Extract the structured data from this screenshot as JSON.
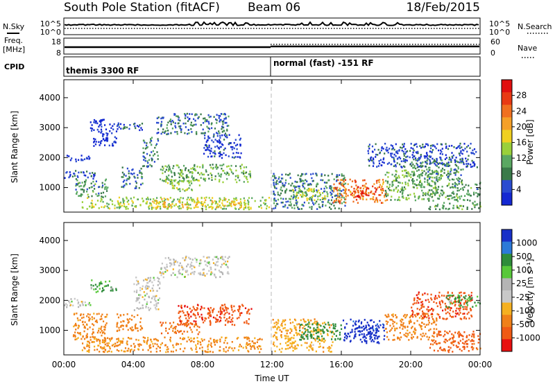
{
  "header": {
    "station": "South Pole Station (fitACF)",
    "beam": "Beam 06",
    "date": "18/Feb/2015"
  },
  "left_labels": {
    "nsky": "N.Sky",
    "freq": "Freq.",
    "freq_unit": "[MHz]",
    "cpid": "CPID"
  },
  "right_labels": {
    "nsearch": "N.Search",
    "nave": "Nave"
  },
  "noise_panel": {
    "left_ticks": [
      "10^5",
      "10^0"
    ],
    "right_ticks": [
      "10^5",
      "10^0"
    ]
  },
  "freq_panel": {
    "left_ticks": [
      "18",
      "8"
    ],
    "right_ticks": [
      "60",
      "0"
    ]
  },
  "cpid_panel": {
    "segments": [
      {
        "label": "themis 3300 RF"
      },
      {
        "label": "normal (fast) -151 RF"
      }
    ]
  },
  "colors": {
    "power": [
      "#1428d2",
      "#2a4bd0",
      "#3a7a4a",
      "#5aa862",
      "#9ad03a",
      "#f0d020",
      "#f5a028",
      "#f07020",
      "#e83a14",
      "#e01010"
    ],
    "velocity": [
      "#1830c8",
      "#2c7ad8",
      "#2e8c3a",
      "#58c83a",
      "#b4b4b4",
      "#c8c8c8",
      "#f5b020",
      "#f08018",
      "#f05a14",
      "#e81010"
    ]
  },
  "chart_data": [
    {
      "type": "heatmap",
      "name": "power",
      "ylabel": "Slant Range [km]",
      "ylim": [
        180,
        4600
      ],
      "yticks": [
        "1000",
        "2000",
        "3000",
        "4000"
      ],
      "xlim": [
        0,
        24
      ],
      "xticks": [
        "00:00",
        "04:00",
        "08:00",
        "12:00",
        "16:00",
        "20:00",
        "00:00"
      ],
      "colorbar": {
        "label": "Power [dB]",
        "ticks": [
          "4",
          "8",
          "12",
          "16",
          "20",
          "24",
          "28"
        ]
      },
      "regions": [
        {
          "t0": 0.0,
          "t1": 1.5,
          "r0": 1900,
          "r1": 2100,
          "v": 4
        },
        {
          "t0": 0.0,
          "t1": 1.8,
          "r0": 1300,
          "r1": 1600,
          "v": 6
        },
        {
          "t0": 0.6,
          "t1": 2.6,
          "r0": 700,
          "r1": 1300,
          "v": 10
        },
        {
          "t0": 1.5,
          "t1": 3.0,
          "r0": 2400,
          "r1": 3300,
          "v": 4
        },
        {
          "t0": 3.0,
          "t1": 4.5,
          "r0": 2900,
          "r1": 3200,
          "v": 6
        },
        {
          "t0": 3.3,
          "t1": 4.5,
          "r0": 1000,
          "r1": 1700,
          "v": 8
        },
        {
          "t0": 4.5,
          "t1": 5.4,
          "r0": 1700,
          "r1": 2700,
          "v": 9
        },
        {
          "t0": 5.3,
          "t1": 9.5,
          "r0": 2800,
          "r1": 3500,
          "v": 8
        },
        {
          "t0": 5.5,
          "t1": 10.8,
          "r0": 1200,
          "r1": 1800,
          "v": 12
        },
        {
          "t0": 5.8,
          "t1": 7.8,
          "r0": 900,
          "r1": 1300,
          "v": 15
        },
        {
          "t0": 8.0,
          "t1": 10.2,
          "r0": 2000,
          "r1": 2800,
          "v": 5
        },
        {
          "t0": 1.0,
          "t1": 11.8,
          "r0": 300,
          "r1": 700,
          "v": 14
        },
        {
          "t0": 5.0,
          "t1": 10.5,
          "r0": 350,
          "r1": 650,
          "v": 18
        },
        {
          "t0": 12.0,
          "t1": 16.2,
          "r0": 300,
          "r1": 1500,
          "v": 9
        },
        {
          "t0": 13.0,
          "t1": 15.2,
          "r0": 600,
          "r1": 1000,
          "v": 15
        },
        {
          "t0": 15.5,
          "t1": 18.6,
          "r0": 500,
          "r1": 1300,
          "v": 22
        },
        {
          "t0": 16.5,
          "t1": 18.0,
          "r0": 700,
          "r1": 1100,
          "v": 27
        },
        {
          "t0": 18.5,
          "t1": 21.8,
          "r0": 600,
          "r1": 1600,
          "v": 12
        },
        {
          "t0": 17.5,
          "t1": 23.8,
          "r0": 1700,
          "r1": 2500,
          "v": 6
        },
        {
          "t0": 20.0,
          "t1": 23.0,
          "r0": 1200,
          "r1": 2000,
          "v": 10
        },
        {
          "t0": 21.0,
          "t1": 24.0,
          "r0": 300,
          "r1": 1200,
          "v": 11
        }
      ]
    },
    {
      "type": "heatmap",
      "name": "velocity",
      "ylabel": "Slant Range [km]",
      "ylim": [
        180,
        4600
      ],
      "yticks": [
        "1000",
        "2000",
        "3000",
        "4000"
      ],
      "xlim": [
        0,
        24
      ],
      "xticks": [
        "00:00",
        "04:00",
        "08:00",
        "12:00",
        "16:00",
        "20:00",
        "00:00"
      ],
      "xlabel": "Time UT",
      "colorbar": {
        "label": "Velocity [m s⁻¹]",
        "ticks": [
          "1000",
          "500",
          "100",
          "25",
          "-25",
          "-100",
          "-500",
          "-1000"
        ]
      },
      "regions": [
        {
          "t0": 0.0,
          "t1": 1.5,
          "r0": 1800,
          "r1": 2100,
          "v": 0
        },
        {
          "t0": 0.5,
          "t1": 2.5,
          "r0": 700,
          "r1": 1600,
          "v": -150
        },
        {
          "t0": 1.5,
          "t1": 3.0,
          "r0": 2300,
          "r1": 2700,
          "v": 60
        },
        {
          "t0": 3.0,
          "t1": 4.5,
          "r0": 1000,
          "r1": 1600,
          "v": -200
        },
        {
          "t0": 4.0,
          "t1": 5.5,
          "r0": 1700,
          "r1": 2800,
          "v": 0
        },
        {
          "t0": 5.5,
          "t1": 9.5,
          "r0": 2800,
          "r1": 3500,
          "v": 0
        },
        {
          "t0": 6.5,
          "t1": 10.8,
          "r0": 1200,
          "r1": 1900,
          "v": -600
        },
        {
          "t0": 5.5,
          "t1": 7.8,
          "r0": 900,
          "r1": 1300,
          "v": -300
        },
        {
          "t0": 1.0,
          "t1": 11.5,
          "r0": 300,
          "r1": 800,
          "v": -120
        },
        {
          "t0": 12.0,
          "t1": 15.5,
          "r0": 300,
          "r1": 1400,
          "v": -80
        },
        {
          "t0": 13.5,
          "t1": 16.0,
          "r0": 700,
          "r1": 1300,
          "v": 150
        },
        {
          "t0": 16.0,
          "t1": 18.5,
          "r0": 600,
          "r1": 1400,
          "v": 700
        },
        {
          "t0": 16.8,
          "t1": 17.8,
          "r0": 800,
          "r1": 1200,
          "v": 1100
        },
        {
          "t0": 18.5,
          "t1": 21.5,
          "r0": 700,
          "r1": 1600,
          "v": -150
        },
        {
          "t0": 20.0,
          "t1": 23.5,
          "r0": 1400,
          "r1": 2300,
          "v": -600
        },
        {
          "t0": 22.0,
          "t1": 24.0,
          "r0": 1800,
          "r1": 2200,
          "v": 60
        },
        {
          "t0": 21.0,
          "t1": 24.0,
          "r0": 300,
          "r1": 1000,
          "v": -400
        }
      ]
    }
  ]
}
